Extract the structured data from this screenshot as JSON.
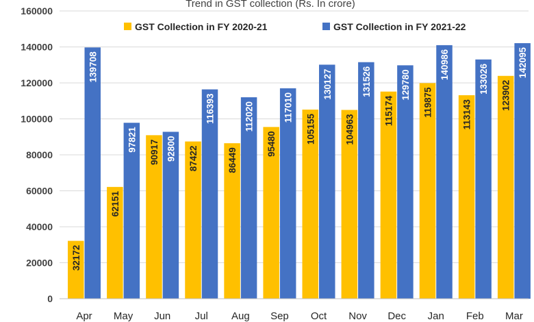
{
  "chart_data": {
    "type": "bar",
    "title": "Trend in GST collection (Rs. In crore)",
    "categories": [
      "Apr",
      "May",
      "Jun",
      "Jul",
      "Aug",
      "Sep",
      "Oct",
      "Nov",
      "Dec",
      "Jan",
      "Feb",
      "Mar"
    ],
    "series": [
      {
        "name": "GST Collection in FY 2020-21",
        "color": "#ffc000",
        "label_color": "#262626",
        "values": [
          32172,
          62151,
          90917,
          87422,
          86449,
          95480,
          105155,
          104963,
          115174,
          119875,
          113143,
          123902
        ]
      },
      {
        "name": "GST Collection in FY 2021-22",
        "color": "#4472c4",
        "label_color": "#ffffff",
        "values": [
          139708,
          97821,
          92800,
          116393,
          112020,
          117010,
          130127,
          131526,
          129780,
          140986,
          133026,
          142095
        ]
      }
    ],
    "ylim": [
      0,
      160000
    ],
    "yticks": [
      "0",
      "20000",
      "40000",
      "60000",
      "80000",
      "100000",
      "120000",
      "140000",
      "160000"
    ],
    "grid": true,
    "legend": "top",
    "xlabel": "",
    "ylabel": ""
  }
}
